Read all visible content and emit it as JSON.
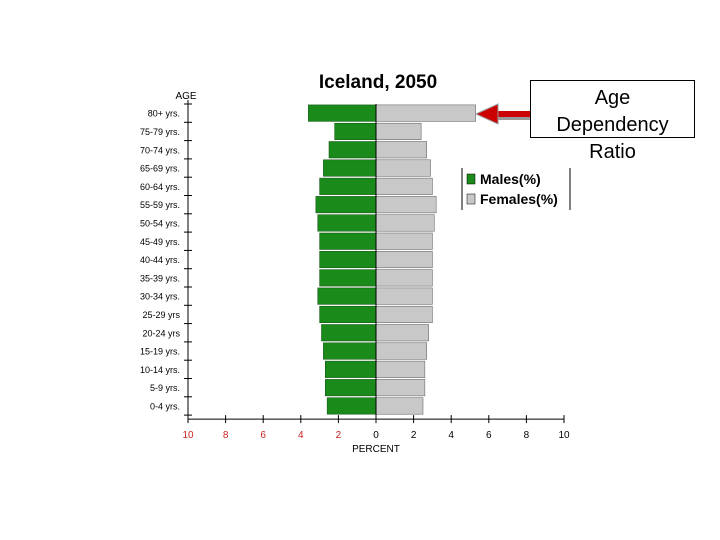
{
  "chart_data": {
    "type": "bar",
    "orientation": "horizontal-population-pyramid",
    "title": "Iceland, 2050",
    "ylabel": "AGE",
    "xlabel": "PERCENT",
    "categories": [
      "80+ yrs.",
      "75-79 yrs.",
      "70-74 yrs.",
      "65-69 yrs.",
      "60-64 yrs.",
      "55-59 yrs.",
      "50-54 yrs.",
      "45-49 yrs.",
      "40-44 yrs.",
      "35-39 yrs.",
      "30-34 yrs.",
      "25-29 yrs",
      "20-24 yrs",
      "15-19 yrs.",
      "10-14 yrs.",
      "5-9 yrs.",
      "0-4 yrs."
    ],
    "series": [
      {
        "name": "Males(%)",
        "color": "#1a8a1a",
        "values": [
          3.6,
          2.2,
          2.5,
          2.8,
          3.0,
          3.2,
          3.1,
          3.0,
          3.0,
          3.0,
          3.1,
          3.0,
          2.9,
          2.8,
          2.7,
          2.7,
          2.6
        ]
      },
      {
        "name": "Females(%)",
        "color": "#c8c8c8",
        "values": [
          5.3,
          2.4,
          2.7,
          2.9,
          3.0,
          3.2,
          3.1,
          3.0,
          3.0,
          3.0,
          3.0,
          3.0,
          2.8,
          2.7,
          2.6,
          2.6,
          2.5
        ]
      }
    ],
    "xlim": [
      -10,
      10
    ],
    "xticks": [
      "10",
      "8",
      "6",
      "4",
      "2",
      "0",
      "2",
      "4",
      "6",
      "8",
      "10"
    ],
    "legend": "right",
    "grid": false
  },
  "callout": {
    "lines": [
      "Age",
      "Dependency",
      "Ratio"
    ],
    "arrow_color": "#cc0000"
  }
}
